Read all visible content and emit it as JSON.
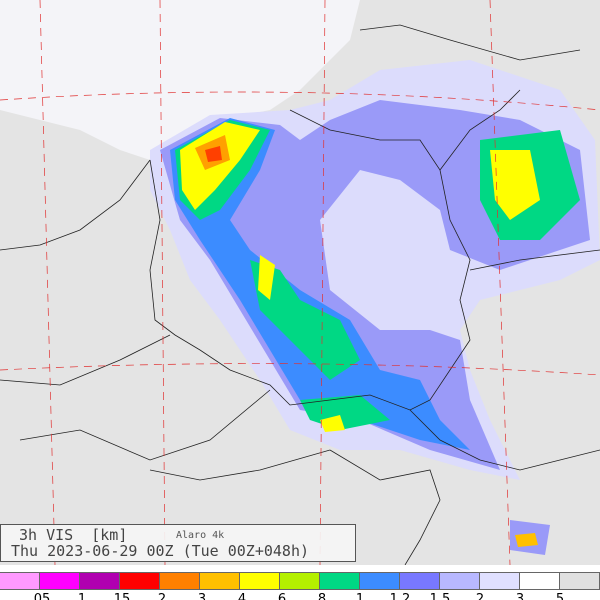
{
  "title": {
    "line1": "3h VIS  [km]",
    "model": "Alaro 4k",
    "line2": "Thu 2023-06-29 00Z (Tue 00Z+048h)"
  },
  "legend": {
    "colors": [
      "#ff99ff",
      "#ff00ff",
      "#b000b0",
      "#ff0000",
      "#ff8000",
      "#ffc000",
      "#ffff00",
      "#b4f000",
      "#00d884",
      "#3c8cff",
      "#7878ff",
      "#b8b8ff",
      "#e0e0ff",
      "#ffffff",
      "#e0e0e0"
    ],
    "labels": [
      ".05",
      ".1",
      ".15",
      ".2",
      ".3",
      ".4",
      ".6",
      ".8",
      "1",
      "1.2",
      "1.5",
      "2",
      "3",
      "5"
    ]
  },
  "map": {
    "background": "#e4e4e4",
    "grid_color": "#e03030",
    "border_color": "#222222"
  }
}
